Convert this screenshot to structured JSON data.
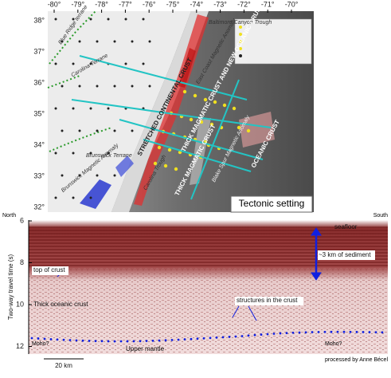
{
  "map": {
    "lon_labels": [
      "-80°",
      "-79°",
      "-78°",
      "-77°",
      "-76°",
      "-75°",
      "-74°",
      "-73°",
      "-72°",
      "-71°",
      "-70°"
    ],
    "lat_labels": [
      "38°",
      "37°",
      "36°",
      "35°",
      "34°",
      "33°",
      "32°"
    ],
    "regions": {
      "blue_ridge": "Blue Ridge terrane",
      "carolina": "Carolina Terrane",
      "brunswick": "Brunswick Terrane",
      "brunswick_anomaly": "Brunswick Magnetic Anomaly",
      "baltimore": "Baltimore Canyon Trough",
      "east_coast_anomaly": "East Coast Magnetic Anomaly",
      "carolina_trough": "Carolina Trough",
      "stretched": "STRETCHED CONTINENTAL CRUST",
      "magmatic_new": "THICK MAGMATIC CRUST AND NEW OCEANIC CRUST?",
      "magmatic": "THICK MAGMATIC CRUST",
      "oceanic": "OCEANIC CRUST",
      "blake_spur": "Blake Spur Magnetic Anomaly"
    },
    "panel_label": "Tectonic setting"
  },
  "section": {
    "left_label": "North",
    "right_label": "South",
    "y_axis_title": "Two-way travel time (s)",
    "y_tick_labels": [
      "6",
      "8",
      "10",
      "12"
    ],
    "annotations": {
      "seafloor": "seafloor",
      "top_of_crust": "top of crust",
      "thick_crust": "Thick oceanic crust",
      "sediment": "~3 km of sediment",
      "structures": "structures in the crust",
      "moho_left": "Moho?",
      "moho_right": "Moho?",
      "mantle": "Upper mantle"
    },
    "scale_bar": "20 km",
    "credit": "processed by Anne Bécel"
  }
}
